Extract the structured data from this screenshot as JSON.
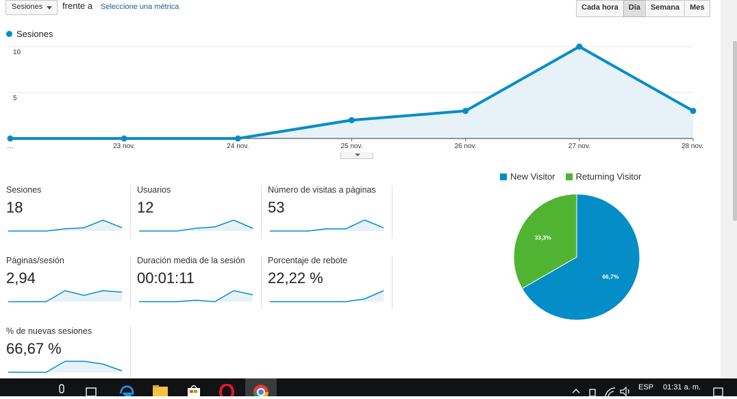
{
  "toolbar": {
    "metric_select": "Sesiones",
    "versus": "frente a",
    "select_metric": "Seleccione una métrica",
    "periods": [
      "Cada hora",
      "Día",
      "Semana",
      "Mes"
    ],
    "active_period": "Día"
  },
  "chart_data": [
    {
      "type": "area",
      "series": [
        {
          "name": "Sesiones",
          "values": [
            0,
            0,
            0,
            2,
            3,
            10,
            3
          ]
        }
      ],
      "x": [
        "…",
        "23 nov.",
        "24 nov.",
        "25 nov.",
        "26 nov.",
        "27 nov.",
        "28 nov."
      ],
      "y_ticks": [
        "10",
        "5"
      ],
      "ylim": [
        0,
        10
      ],
      "color": "#058dc7",
      "legend_position": "top-left"
    },
    {
      "type": "pie",
      "categories": [
        "New Visitor",
        "Returning Visitor"
      ],
      "values": [
        66.7,
        33.3
      ],
      "labels": [
        "66,7%",
        "33,3%"
      ],
      "colors": [
        "#058dc7",
        "#50b432"
      ],
      "legend_position": "top"
    }
  ],
  "scorecards": [
    {
      "name": "Sesiones",
      "value": "18",
      "spark": [
        0,
        0,
        0,
        2,
        3,
        10,
        3
      ]
    },
    {
      "name": "Usuarios",
      "value": "12",
      "spark": [
        0,
        0,
        0,
        2,
        3,
        8,
        2
      ]
    },
    {
      "name": "Número de visitas a páginas",
      "value": "53",
      "spark": [
        0,
        0,
        0,
        2,
        2,
        10,
        3
      ]
    },
    {
      "name": "Páginas/sesión",
      "value": "2,94",
      "spark": [
        0,
        0,
        0,
        7,
        4,
        7,
        6
      ]
    },
    {
      "name": "Duración media de la sesión",
      "value": "00:01:11",
      "spark": [
        0,
        0,
        0,
        1,
        0,
        8,
        5
      ]
    },
    {
      "name": "Porcentaje de rebote",
      "value": "22,22 %",
      "spark": [
        0,
        0,
        0,
        0,
        0,
        2,
        8
      ]
    },
    {
      "name": "% de nuevas sesiones",
      "value": "66,67 %",
      "spark": [
        0,
        0,
        0,
        8,
        8,
        6,
        1
      ]
    }
  ],
  "taskbar": {
    "language": "ESP",
    "clock": "01:31 a. m.",
    "icons": [
      "mic-icon",
      "task-view-icon",
      "edge-icon",
      "file-explorer-icon",
      "store-icon",
      "opera-icon",
      "chrome-icon"
    ]
  }
}
